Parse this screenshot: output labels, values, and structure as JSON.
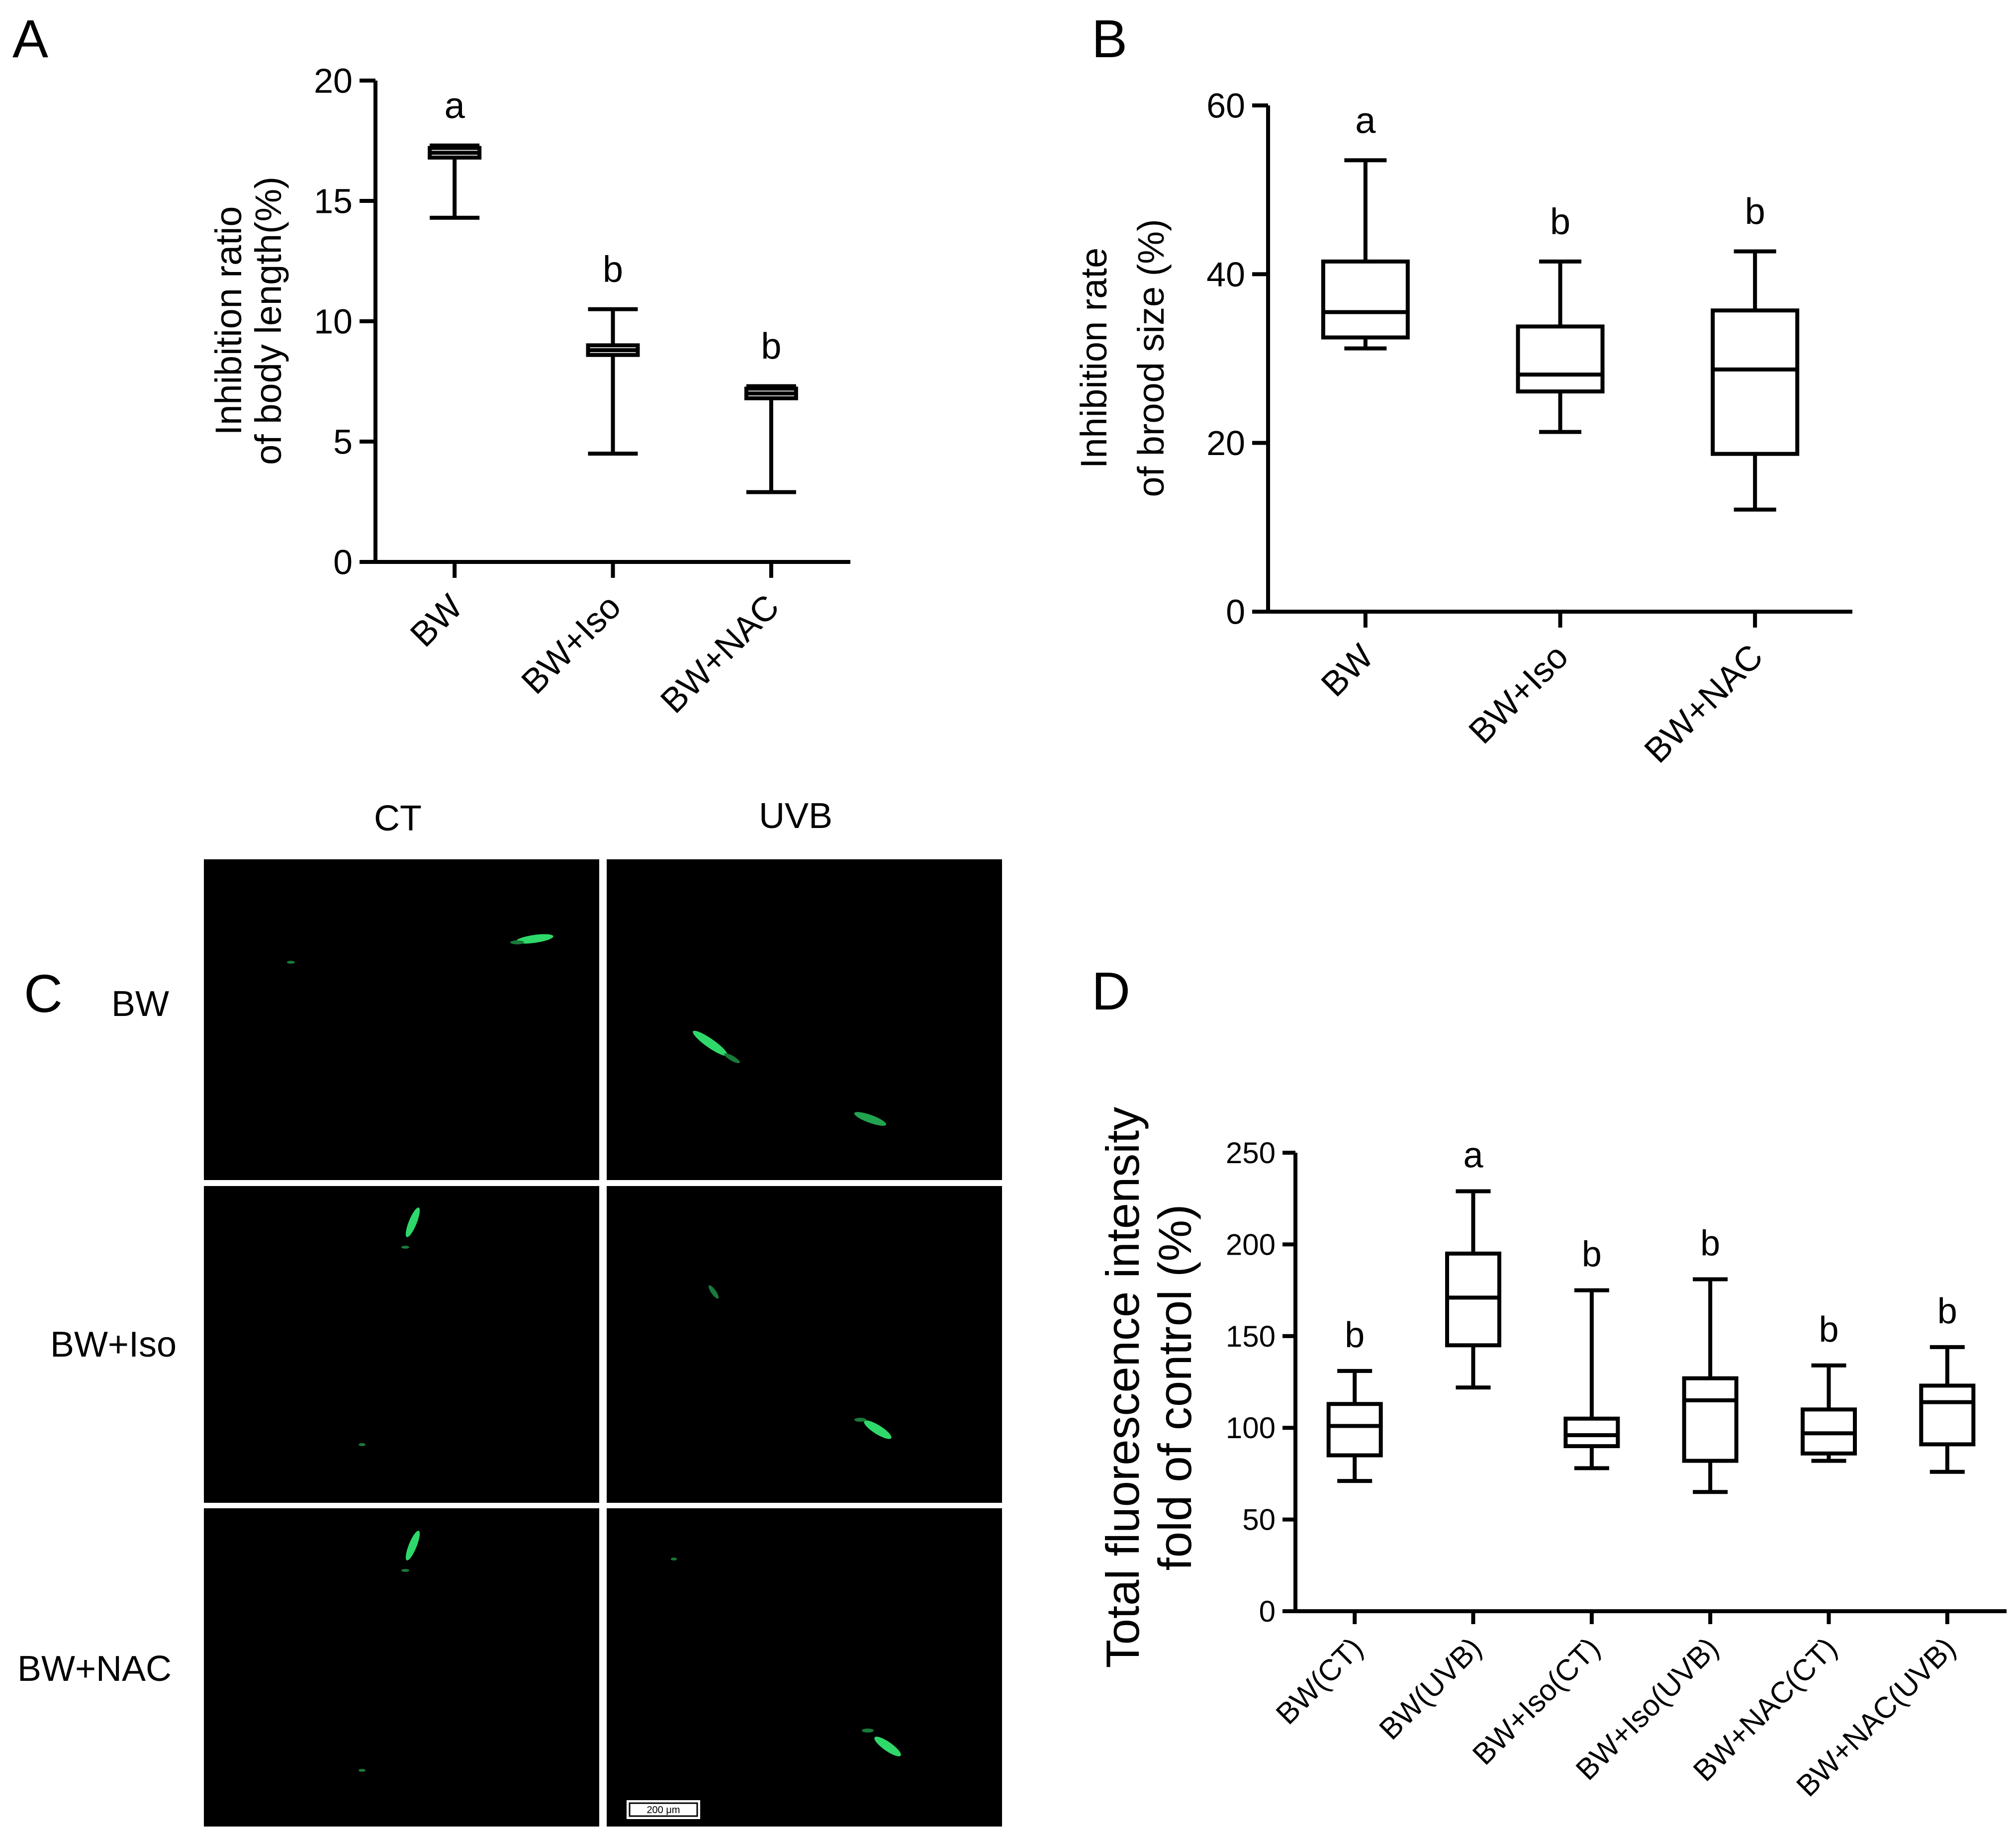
{
  "panels": {
    "A": {
      "letter": "A"
    },
    "B": {
      "letter": "B"
    },
    "C": {
      "letter": "C"
    },
    "D": {
      "letter": "D"
    }
  },
  "micrographs": {
    "col_labels": [
      "CT",
      "UVB"
    ],
    "row_labels": [
      "BW",
      "BW+Iso",
      "BW+NAC"
    ],
    "scale_bar_text": "200 μm",
    "background_color": "#000000",
    "worm_color": "#2fd86a"
  },
  "chart_data": [
    {
      "panel": "A",
      "type": "box",
      "ylabel": [
        "Inhibition ratio",
        "of body length(%)"
      ],
      "ylim": [
        0,
        20
      ],
      "yticks": [
        0,
        5,
        10,
        15,
        20
      ],
      "categories": [
        "BW",
        "BW+Iso",
        "BW+NAC"
      ],
      "boxes": [
        {
          "min": 14.3,
          "q1": 16.8,
          "median": 17.0,
          "q3": 17.2,
          "max": 17.3
        },
        {
          "min": 4.5,
          "q1": 8.6,
          "median": 8.8,
          "q3": 9.0,
          "max": 10.5
        },
        {
          "min": 2.9,
          "q1": 6.8,
          "median": 7.0,
          "q3": 7.2,
          "max": 7.3
        }
      ],
      "letters": [
        "a",
        "b",
        "b"
      ]
    },
    {
      "panel": "B",
      "type": "box",
      "ylabel": [
        "Inhibition rate",
        "of brood size (%)"
      ],
      "ylim": [
        0,
        60
      ],
      "yticks": [
        0,
        20,
        40,
        60
      ],
      "categories": [
        "BW",
        "BW+Iso",
        "BW+NAC"
      ],
      "boxes": [
        {
          "min": 31.2,
          "q1": 32.5,
          "median": 35.5,
          "q3": 41.5,
          "max": 53.5
        },
        {
          "min": 21.3,
          "q1": 26.1,
          "median": 28.1,
          "q3": 33.8,
          "max": 41.5
        },
        {
          "min": 12.1,
          "q1": 18.7,
          "median": 28.7,
          "q3": 35.7,
          "max": 42.7
        }
      ],
      "letters": [
        "a",
        "b",
        "b"
      ]
    },
    {
      "panel": "D",
      "type": "box",
      "ylabel": [
        "Total fluorescence intensity",
        "fold of control (%)"
      ],
      "ylim": [
        0,
        250
      ],
      "yticks": [
        0,
        50,
        100,
        150,
        200,
        250
      ],
      "categories": [
        "BW(CT)",
        "BW(UVB)",
        "BW+Iso(CT)",
        "BW+Iso(UVB)",
        "BW+NAC(CT)",
        "BW+NAC(UVB)"
      ],
      "boxes": [
        {
          "min": 71,
          "q1": 85,
          "median": 101,
          "q3": 113,
          "max": 131
        },
        {
          "min": 122,
          "q1": 145,
          "median": 171,
          "q3": 195,
          "max": 229
        },
        {
          "min": 78,
          "q1": 90,
          "median": 96,
          "q3": 105,
          "max": 175
        },
        {
          "min": 65,
          "q1": 82,
          "median": 115,
          "q3": 127,
          "max": 181
        },
        {
          "min": 82,
          "q1": 86,
          "median": 97,
          "q3": 110,
          "max": 134
        },
        {
          "min": 76,
          "q1": 91,
          "median": 114,
          "q3": 123,
          "max": 144
        }
      ],
      "letters": [
        "b",
        "a",
        "b",
        "b",
        "b",
        "b"
      ]
    }
  ]
}
